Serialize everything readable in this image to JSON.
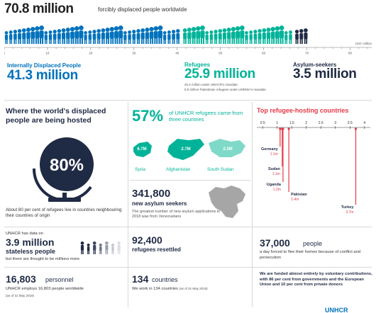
{
  "header": {
    "total": "70.8 million",
    "subtitle": "forcibly displaced people worldwide"
  },
  "scale": {
    "unit_label": "Unit: million",
    "ticks": [
      "0",
      "10",
      "20",
      "30",
      "40",
      "50",
      "60",
      "70",
      "80"
    ],
    "max": 85
  },
  "people_strip": {
    "total_million": 70.8,
    "segments": [
      {
        "category": "Internally Displaced People",
        "value_million": 41.3,
        "color": "#0072bc"
      },
      {
        "category": "Refugees",
        "value_million": 25.9,
        "color": "#00b398"
      },
      {
        "category": "Asylum-seekers",
        "value_million": 3.5,
        "color": "#1f2a44"
      }
    ]
  },
  "categories": {
    "idp": {
      "label": "Internally Displaced People",
      "value": "41.3 million"
    },
    "refugees": {
      "label": "Refugees",
      "value": "25.9 million",
      "note1": "20.4 million under UNHCR's mandate",
      "note2": "5.5 million Palestinian refugees under UNRWA's mandate"
    },
    "asylum": {
      "label": "Asylum-seekers",
      "value": "3.5 million"
    }
  },
  "hosted": {
    "title": "Where the world's displaced people are being hosted",
    "percent": "80%",
    "description": "About 80 per cent of refugees live in countries neighbouring their countries of origin"
  },
  "three_countries": {
    "percent": "57%",
    "description": "of UNHCR refugees came from three countries",
    "countries": [
      {
        "name": "Syria",
        "value": "6.7M"
      },
      {
        "name": "Afghanistan",
        "value": "2.7M"
      },
      {
        "name": "South Sudan",
        "value": "2.3M"
      }
    ]
  },
  "asylum_seekers": {
    "value": "341,800",
    "label": "new asylum seekers",
    "description": "The greatest number of new asylum applications in 2018 was from Venezuelans"
  },
  "chart_data": {
    "type": "bar",
    "title": "Top refugee-hosting countries",
    "axis_ticks": [
      "0.5",
      "1",
      "1.5",
      "2",
      "2.5",
      "3",
      "3.5",
      "4"
    ],
    "xlim": [
      0.3,
      4.2
    ],
    "categories": [
      "Germany",
      "Sudan",
      "Uganda",
      "Pakistan",
      "Turkey"
    ],
    "values": [
      1.1,
      1.1,
      1.2,
      1.4,
      3.7
    ],
    "value_labels": [
      "1.1m",
      "1.1m",
      "1.2m",
      "1.4m",
      "3.7m"
    ],
    "color": "#e63946"
  },
  "stateless": {
    "intro": "UNHCR has data on",
    "value": "3.9 million",
    "label": "stateless people",
    "note": "but there are thought to be millions more"
  },
  "resettled": {
    "value": "92,400",
    "label": "refugees resettled"
  },
  "per_day": {
    "value": "37,000",
    "word": "people",
    "description": "a day forced to flee their homes because of conflict and persecution"
  },
  "personnel": {
    "value": "16,803",
    "word": "personnel",
    "description": "UNHCR employs 16,803 people worldwide",
    "date": "(as of 31 May 2019)"
  },
  "countries_work": {
    "value": "134",
    "word": "countries",
    "description": "We work in 134 countries",
    "date": "(as of 31 May 2019)"
  },
  "funding": {
    "text": "We are funded almost entirely by voluntary contributions, with 86 per cent from governments and the European Union and 10 per cent from private donors"
  },
  "brand": {
    "name": "UNHCR"
  }
}
